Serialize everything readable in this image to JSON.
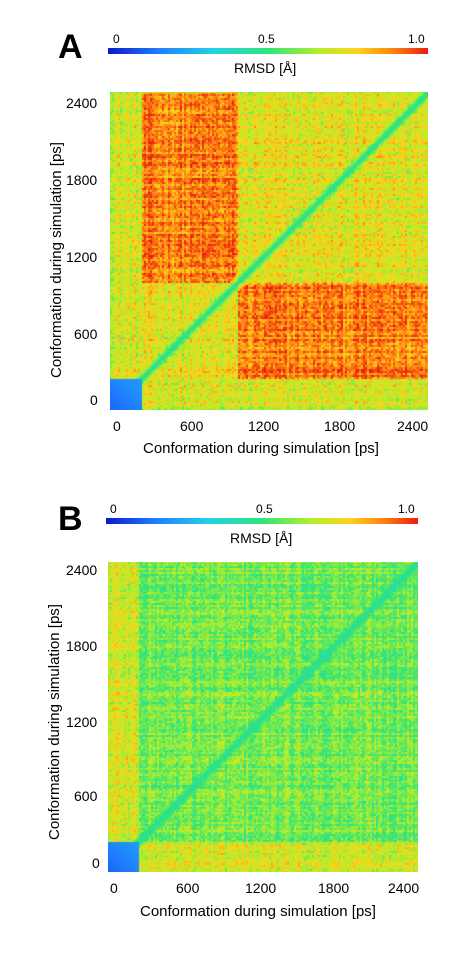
{
  "chart_data": [
    {
      "type": "heatmap",
      "panel_label": "A",
      "colorbar": {
        "label": "RMSD [Å]",
        "ticks": [
          "0",
          "0.5",
          "1.0"
        ],
        "min": 0,
        "max": 1.0
      },
      "xlabel": "Conformation during simulation [ps]",
      "ylabel": "Conformation during simulation [ps]",
      "x_ticks": [
        "0",
        "600",
        "1200",
        "1800",
        "2400"
      ],
      "y_ticks": [
        "0",
        "600",
        "1200",
        "1800",
        "2400"
      ],
      "xlim": [
        0,
        2500
      ],
      "ylim": [
        0,
        2500
      ],
      "blocks": [
        {
          "x": [
            0,
            250
          ],
          "y": [
            0,
            250
          ],
          "rmsd": 0.15
        },
        {
          "x": [
            250,
            1000
          ],
          "y": [
            1000,
            2500
          ],
          "rmsd": 0.88
        },
        {
          "x": [
            1000,
            2500
          ],
          "y": [
            250,
            1000
          ],
          "rmsd": 0.88
        },
        {
          "x": [
            250,
            1000
          ],
          "y": [
            250,
            1000
          ],
          "rmsd": 0.72
        },
        {
          "x": [
            1000,
            2500
          ],
          "y": [
            1000,
            2500
          ],
          "rmsd": 0.72
        }
      ],
      "diagonal_rmsd": 0.45
    },
    {
      "type": "heatmap",
      "panel_label": "B",
      "colorbar": {
        "label": "RMSD [Å]",
        "ticks": [
          "0",
          "0.5",
          "1.0"
        ],
        "min": 0,
        "max": 1.0
      },
      "xlabel": "Conformation during simulation [ps]",
      "ylabel": "Conformation during simulation [ps]",
      "x_ticks": [
        "0",
        "600",
        "1200",
        "1800",
        "2400"
      ],
      "y_ticks": [
        "0",
        "600",
        "1200",
        "1800",
        "2400"
      ],
      "xlim": [
        0,
        2500
      ],
      "ylim": [
        0,
        2500
      ],
      "blocks": [
        {
          "x": [
            0,
            250
          ],
          "y": [
            0,
            250
          ],
          "rmsd": 0.15
        },
        {
          "x": [
            250,
            2500
          ],
          "y": [
            250,
            2500
          ],
          "rmsd": 0.58
        }
      ],
      "diagonal_rmsd": 0.45
    }
  ]
}
